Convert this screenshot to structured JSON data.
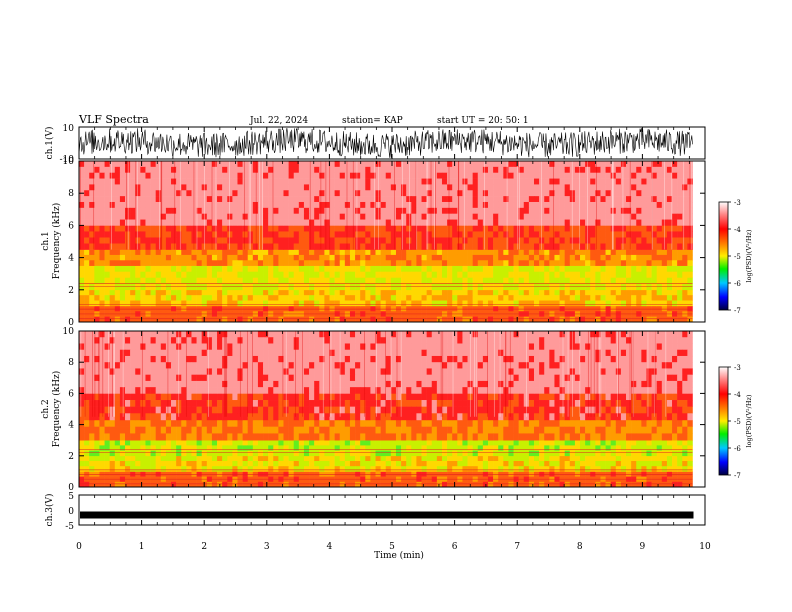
{
  "header": {
    "title": "VLF Spectra",
    "date": "Jul. 22, 2024",
    "station": "station= KAP",
    "start": "start UT =  20: 50: 1"
  },
  "colorbar": {
    "label": "log(PSD)(V²/Hz)",
    "ticks": [
      "-3",
      "-4",
      "-5",
      "-6",
      "-7"
    ]
  },
  "colors": {
    "red": "#ff1a1a",
    "orange": "#ff8c00",
    "yellow": "#ffe000",
    "green": "#7cf000",
    "blue": "#0000ff",
    "black": "#000000"
  },
  "chart_data": [
    {
      "type": "line",
      "panel": "ch1-waveform",
      "ylabel": "ch.1(V)",
      "ylim": [
        -10,
        10
      ],
      "yticks": [
        "10",
        "-10"
      ],
      "xlim": [
        0,
        10
      ],
      "description_level": "noisy signal spanning roughly -8 to +8 V, data ending near 9.8 min"
    },
    {
      "type": "heatmap",
      "panel": "ch1-spectrogram",
      "ylabel": "ch.1 Frequency (kHz)",
      "ylim": [
        0,
        10
      ],
      "yticks": [
        "0",
        "2",
        "4",
        "6",
        "8",
        "10"
      ],
      "xlim": [
        0,
        10
      ],
      "zlim": [
        -7,
        -3
      ],
      "bands": [
        {
          "freq_khz": [
            0,
            1.0
          ],
          "level": -4.0
        },
        {
          "freq_khz": [
            1.0,
            2.0
          ],
          "level": -4.6
        },
        {
          "freq_khz": [
            2.0,
            3.5
          ],
          "level": -4.8
        },
        {
          "freq_khz": [
            3.5,
            4.5
          ],
          "level": -4.3
        },
        {
          "freq_khz": [
            4.5,
            6.0
          ],
          "level": -3.8
        },
        {
          "freq_khz": [
            6.0,
            10.0
          ],
          "level": -3.3
        }
      ]
    },
    {
      "type": "heatmap",
      "panel": "ch2-spectrogram",
      "ylabel": "ch.2 Frequency (kHz)",
      "ylim": [
        0,
        10
      ],
      "yticks": [
        "0",
        "2",
        "4",
        "6",
        "8",
        "10"
      ],
      "xlim": [
        0,
        10
      ],
      "zlim": [
        -7,
        -3
      ],
      "bands": [
        {
          "freq_khz": [
            0,
            1.0
          ],
          "level": -4.0
        },
        {
          "freq_khz": [
            1.0,
            2.0
          ],
          "level": -4.7
        },
        {
          "freq_khz": [
            2.0,
            3.0
          ],
          "level": -4.9
        },
        {
          "freq_khz": [
            3.0,
            4.3
          ],
          "level": -4.2
        },
        {
          "freq_khz": [
            4.3,
            6.0
          ],
          "level": -3.7
        },
        {
          "freq_khz": [
            6.0,
            10.0
          ],
          "level": -3.3
        }
      ]
    },
    {
      "type": "line",
      "panel": "ch3-waveform",
      "ylabel": "ch.3(V)",
      "ylim": [
        -5,
        5
      ],
      "yticks": [
        "5",
        "0",
        "-5"
      ],
      "xlim": [
        0,
        10
      ],
      "level_v": -1.5
    }
  ],
  "xaxis": {
    "label": "Time (min)",
    "ticks": [
      "0",
      "1",
      "2",
      "3",
      "4",
      "5",
      "6",
      "7",
      "8",
      "9",
      "10"
    ]
  }
}
